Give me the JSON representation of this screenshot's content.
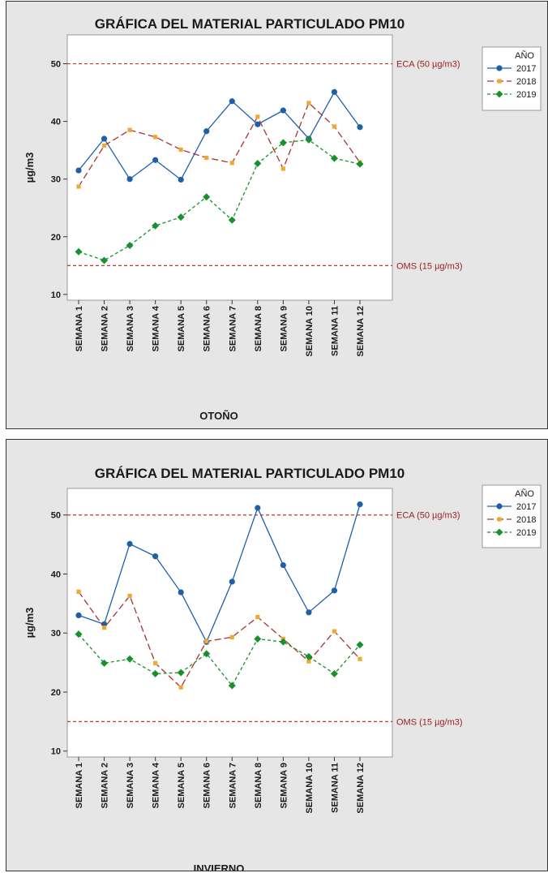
{
  "colors": {
    "s2017": "#1f5fa8",
    "s2018": "#f0a830",
    "s2019": "#17912c",
    "reference": "#c0392b",
    "reference_label": "#9b1c1c",
    "panel_bg": "#e6e6e6",
    "plot_bg": "#ffffff"
  },
  "chart_data": [
    {
      "type": "line",
      "title": "GRÁFICA DEL MATERIAL PARTICULADO PM10",
      "xlabel": "OTOÑO",
      "ylabel": "µg/m3",
      "ylim": [
        9,
        55
      ],
      "yticks": [
        10,
        20,
        30,
        40,
        50
      ],
      "categories": [
        "SEMANA 1",
        "SEMANA 2",
        "SEMANA 3",
        "SEMANA 4",
        "SEMANA 5",
        "SEMANA 6",
        "SEMANA 7",
        "SEMANA 8",
        "SEMANA 9",
        "SEMANA 10",
        "SEMANA 11",
        "SEMANA 12"
      ],
      "reference_lines": [
        {
          "value": 50,
          "label": "ECA (50 µg/m3)"
        },
        {
          "value": 15,
          "label": "OMS (15 µg/m3)"
        }
      ],
      "legend": {
        "title": "AÑO",
        "position": "right"
      },
      "series": [
        {
          "name": "2017",
          "marker": "circle",
          "values": [
            31.5,
            37,
            30,
            33.3,
            29.9,
            38.3,
            43.5,
            39.5,
            41.9,
            37,
            45.1,
            39
          ]
        },
        {
          "name": "2018",
          "marker": "square",
          "values": [
            28.7,
            35.8,
            38.5,
            37.3,
            35.1,
            33.7,
            32.8,
            40.8,
            31.8,
            43.2,
            39.1,
            32.9
          ]
        },
        {
          "name": "2019",
          "marker": "diamond",
          "values": [
            17.4,
            15.9,
            18.5,
            21.9,
            23.4,
            26.9,
            22.9,
            32.7,
            36.3,
            36.8,
            33.6,
            32.6
          ]
        }
      ]
    },
    {
      "type": "line",
      "title": "GRÁFICA DEL MATERIAL PARTICULADO PM10",
      "xlabel": "INVIERNO",
      "ylabel": "µg/m3",
      "ylim": [
        9,
        54.5
      ],
      "yticks": [
        10,
        20,
        30,
        40,
        50
      ],
      "categories": [
        "SEMANA 1",
        "SEMANA 2",
        "SEMANA 3",
        "SEMANA 4",
        "SEMANA 5",
        "SEMANA 6",
        "SEMANA 7",
        "SEMANA 8",
        "SEMANA 9",
        "SEMANA 10",
        "SEMANA 11",
        "SEMANA 12"
      ],
      "reference_lines": [
        {
          "value": 50,
          "label": "ECA (50 µg/m3)"
        },
        {
          "value": 15,
          "label": "OMS (15 µg/m3)"
        }
      ],
      "legend": {
        "title": "AÑO",
        "position": "right"
      },
      "series": [
        {
          "name": "2017",
          "marker": "circle",
          "values": [
            33,
            31.5,
            45.1,
            43,
            36.9,
            28.5,
            38.7,
            51.2,
            41.5,
            33.5,
            37.2,
            51.8
          ]
        },
        {
          "name": "2018",
          "marker": "square",
          "values": [
            37,
            30.9,
            36.3,
            24.9,
            20.8,
            28.6,
            29.3,
            32.7,
            29,
            25.2,
            30.3,
            25.6
          ]
        },
        {
          "name": "2019",
          "marker": "diamond",
          "values": [
            29.8,
            24.9,
            25.6,
            23.1,
            23.3,
            26.5,
            21.1,
            29,
            28.5,
            26,
            23.1,
            28
          ]
        }
      ]
    }
  ]
}
